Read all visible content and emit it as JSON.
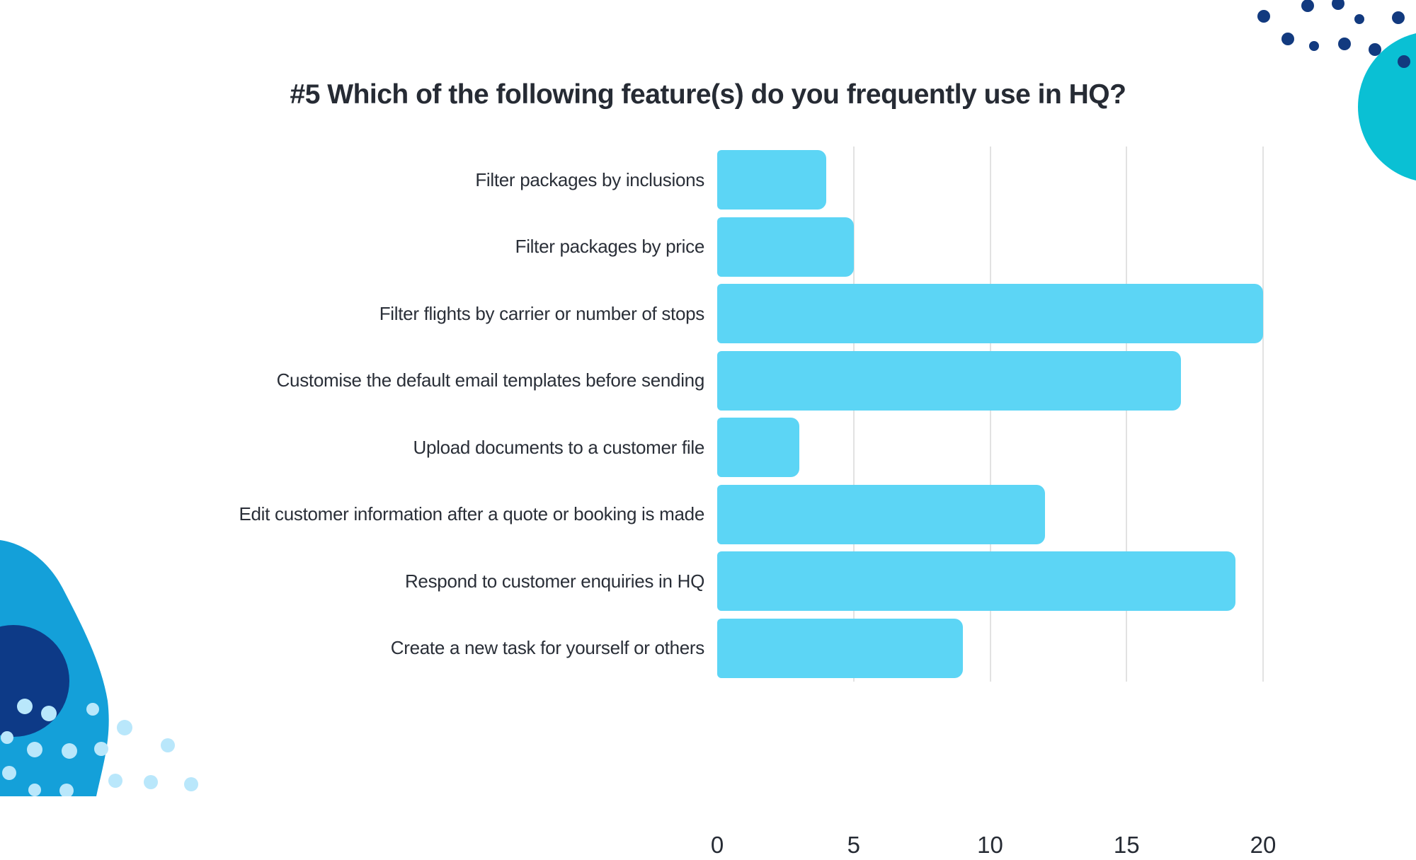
{
  "title": "#5 Which of the following feature(s) do you frequently use in HQ?",
  "chart_data": {
    "type": "bar",
    "orientation": "horizontal",
    "title": "#5 Which of the following feature(s) do you frequently use in HQ?",
    "categories": [
      "Filter packages by inclusions",
      "Filter packages by price",
      "Filter flights by carrier or number of stops",
      "Customise the default email templates before sending",
      "Upload documents to a customer file",
      "Edit customer information after a quote or booking is made",
      "Respond to customer enquiries in HQ",
      "Create a new task for yourself or others"
    ],
    "values": [
      4,
      5,
      20,
      17,
      3,
      12,
      19,
      9
    ],
    "xlabel": "",
    "ylabel": "",
    "xlim": [
      0,
      20
    ],
    "xticks": [
      0,
      5,
      10,
      15,
      20
    ],
    "grid": true,
    "legend": false,
    "bar_color": "#5cd5f5"
  },
  "colors": {
    "bar": "#5cd5f5",
    "gridline": "#e2e2e2",
    "text": "#262b34",
    "deco_navy": "#123a7f",
    "deco_teal": "#0ac0d4",
    "deco_azure_blob": "#14a0d9",
    "deco_light_blue": "#b9e7fb"
  }
}
